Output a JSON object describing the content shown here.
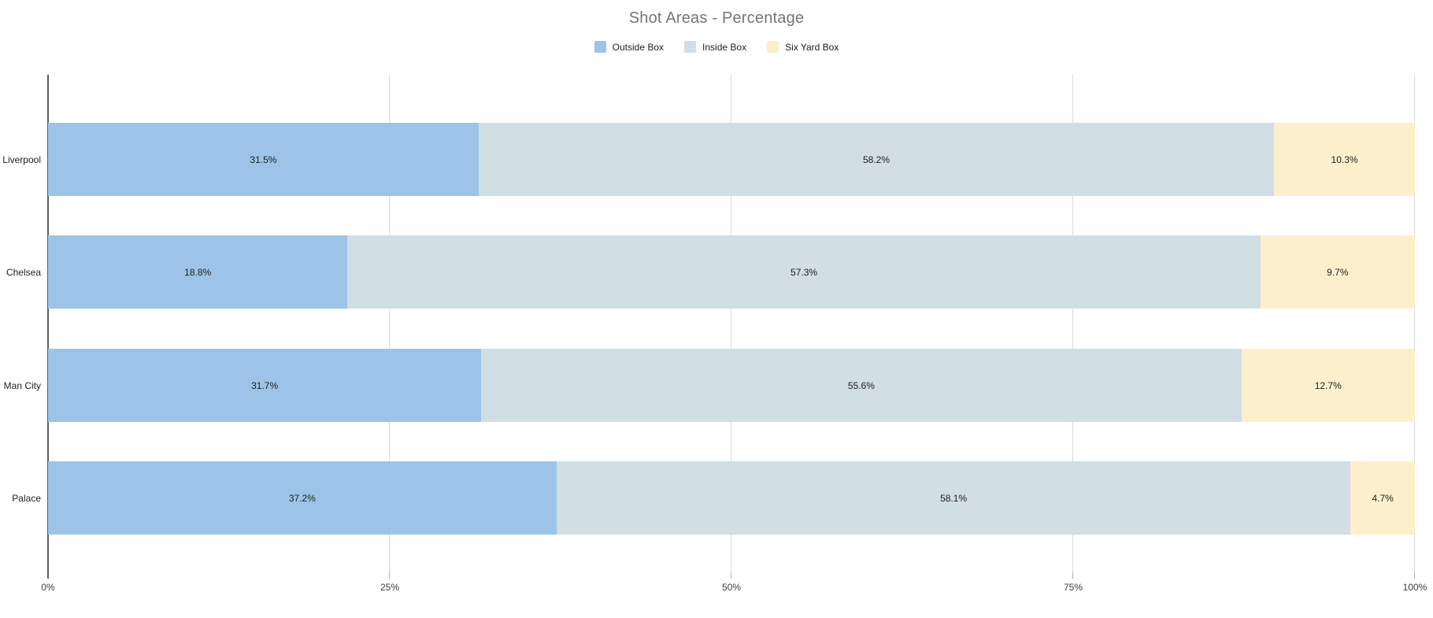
{
  "title": "Shot Areas - Percentage",
  "x_axis": {
    "tick_labels": [
      "0%",
      "25%",
      "50%",
      "75%",
      "100%"
    ]
  },
  "chart_data": {
    "type": "bar",
    "orientation": "horizontal",
    "stacked": true,
    "normalized_to_row_total": true,
    "title": "Shot Areas - Percentage",
    "categories": [
      "Liverpool",
      "Chelsea",
      "Man City",
      "Palace"
    ],
    "series": [
      {
        "name": "Outside Box",
        "color": "#9dc4e8",
        "values": [
          31.5,
          18.8,
          31.7,
          37.2
        ],
        "labels": [
          "31.5%",
          "18.8%",
          "31.7%",
          "37.2%"
        ]
      },
      {
        "name": "Inside Box",
        "color": "#d1dee3",
        "values": [
          58.2,
          57.3,
          55.6,
          58.1
        ],
        "labels": [
          "58.2%",
          "57.3%",
          "55.6%",
          "58.1%"
        ]
      },
      {
        "name": "Six Yard Box",
        "color": "#fcf0cc",
        "values": [
          10.3,
          9.7,
          12.7,
          4.7
        ],
        "labels": [
          "10.3%",
          "9.7%",
          "12.7%",
          "4.7%"
        ]
      }
    ],
    "xlim": [
      0,
      100
    ],
    "x_tick_labels": [
      "0%",
      "25%",
      "50%",
      "75%",
      "100%"
    ],
    "grid": true,
    "legend_position": "top",
    "value_labels": "centered-in-segment"
  },
  "colors": {
    "title_text": "#757575",
    "gridline": "#d9d9d9",
    "axis_line": "#5f5f5f",
    "label_text": "#222222"
  }
}
